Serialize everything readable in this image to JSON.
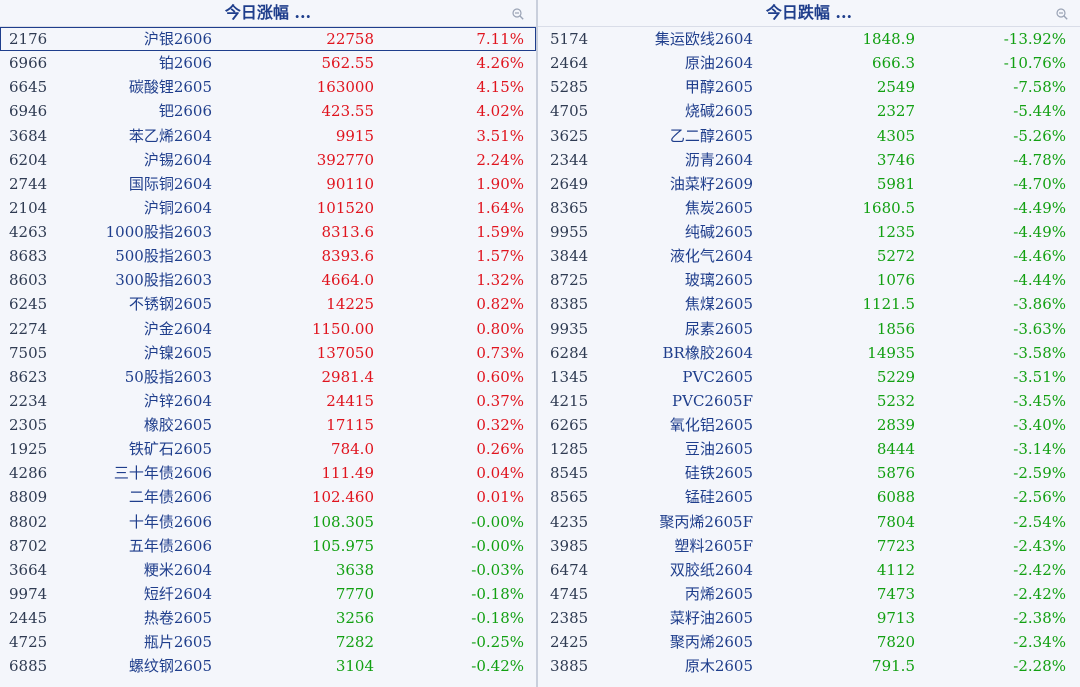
{
  "gainers": {
    "title": "今日涨幅 ...",
    "rows": [
      {
        "code": "2176",
        "name": "沪银2606",
        "price": "22758",
        "change": "7.11%",
        "dir": "up"
      },
      {
        "code": "6966",
        "name": "铂2606",
        "price": "562.55",
        "change": "4.26%",
        "dir": "up"
      },
      {
        "code": "6645",
        "name": "碳酸锂2605",
        "price": "163000",
        "change": "4.15%",
        "dir": "up"
      },
      {
        "code": "6946",
        "name": "钯2606",
        "price": "423.55",
        "change": "4.02%",
        "dir": "up"
      },
      {
        "code": "3684",
        "name": "苯乙烯2604",
        "price": "9915",
        "change": "3.51%",
        "dir": "up"
      },
      {
        "code": "6204",
        "name": "沪锡2604",
        "price": "392770",
        "change": "2.24%",
        "dir": "up"
      },
      {
        "code": "2744",
        "name": "国际铜2604",
        "price": "90110",
        "change": "1.90%",
        "dir": "up"
      },
      {
        "code": "2104",
        "name": "沪铜2604",
        "price": "101520",
        "change": "1.64%",
        "dir": "up"
      },
      {
        "code": "4263",
        "name": "1000股指2603",
        "price": "8313.6",
        "change": "1.59%",
        "dir": "up"
      },
      {
        "code": "8683",
        "name": "500股指2603",
        "price": "8393.6",
        "change": "1.57%",
        "dir": "up"
      },
      {
        "code": "8603",
        "name": "300股指2603",
        "price": "4664.0",
        "change": "1.32%",
        "dir": "up"
      },
      {
        "code": "6245",
        "name": "不锈钢2605",
        "price": "14225",
        "change": "0.82%",
        "dir": "up"
      },
      {
        "code": "2274",
        "name": "沪金2604",
        "price": "1150.00",
        "change": "0.80%",
        "dir": "up"
      },
      {
        "code": "7505",
        "name": "沪镍2605",
        "price": "137050",
        "change": "0.73%",
        "dir": "up"
      },
      {
        "code": "8623",
        "name": "50股指2603",
        "price": "2981.4",
        "change": "0.60%",
        "dir": "up"
      },
      {
        "code": "2234",
        "name": "沪锌2604",
        "price": "24415",
        "change": "0.37%",
        "dir": "up"
      },
      {
        "code": "2305",
        "name": "橡胶2605",
        "price": "17115",
        "change": "0.32%",
        "dir": "up"
      },
      {
        "code": "1925",
        "name": "铁矿石2605",
        "price": "784.0",
        "change": "0.26%",
        "dir": "up"
      },
      {
        "code": "4286",
        "name": "三十年债2606",
        "price": "111.49",
        "change": "0.04%",
        "dir": "up"
      },
      {
        "code": "8809",
        "name": "二年债2606",
        "price": "102.460",
        "change": "0.01%",
        "dir": "up"
      },
      {
        "code": "8802",
        "name": "十年债2606",
        "price": "108.305",
        "change": "-0.00%",
        "dir": "down"
      },
      {
        "code": "8702",
        "name": "五年债2606",
        "price": "105.975",
        "change": "-0.00%",
        "dir": "down"
      },
      {
        "code": "3664",
        "name": "粳米2604",
        "price": "3638",
        "change": "-0.03%",
        "dir": "down"
      },
      {
        "code": "9974",
        "name": "短纤2604",
        "price": "7770",
        "change": "-0.18%",
        "dir": "down"
      },
      {
        "code": "2445",
        "name": "热卷2605",
        "price": "3256",
        "change": "-0.18%",
        "dir": "down"
      },
      {
        "code": "4725",
        "name": "瓶片2605",
        "price": "7282",
        "change": "-0.25%",
        "dir": "down"
      },
      {
        "code": "6885",
        "name": "螺纹钢2605",
        "price": "3104",
        "change": "-0.42%",
        "dir": "down"
      }
    ]
  },
  "losers": {
    "title": "今日跌幅 ...",
    "rows": [
      {
        "code": "5174",
        "name": "集运欧线2604",
        "price": "1848.9",
        "change": "-13.92%",
        "dir": "down"
      },
      {
        "code": "2464",
        "name": "原油2604",
        "price": "666.3",
        "change": "-10.76%",
        "dir": "down"
      },
      {
        "code": "5285",
        "name": "甲醇2605",
        "price": "2549",
        "change": "-7.58%",
        "dir": "down"
      },
      {
        "code": "4705",
        "name": "烧碱2605",
        "price": "2327",
        "change": "-5.44%",
        "dir": "down"
      },
      {
        "code": "3625",
        "name": "乙二醇2605",
        "price": "4305",
        "change": "-5.26%",
        "dir": "down"
      },
      {
        "code": "2344",
        "name": "沥青2604",
        "price": "3746",
        "change": "-4.78%",
        "dir": "down"
      },
      {
        "code": "2649",
        "name": "油菜籽2609",
        "price": "5981",
        "change": "-4.70%",
        "dir": "down"
      },
      {
        "code": "8365",
        "name": "焦炭2605",
        "price": "1680.5",
        "change": "-4.49%",
        "dir": "down"
      },
      {
        "code": "9955",
        "name": "纯碱2605",
        "price": "1235",
        "change": "-4.49%",
        "dir": "down"
      },
      {
        "code": "3844",
        "name": "液化气2604",
        "price": "5272",
        "change": "-4.46%",
        "dir": "down"
      },
      {
        "code": "8725",
        "name": "玻璃2605",
        "price": "1076",
        "change": "-4.44%",
        "dir": "down"
      },
      {
        "code": "8385",
        "name": "焦煤2605",
        "price": "1121.5",
        "change": "-3.86%",
        "dir": "down"
      },
      {
        "code": "9935",
        "name": "尿素2605",
        "price": "1856",
        "change": "-3.63%",
        "dir": "down"
      },
      {
        "code": "6284",
        "name": "BR橡胶2604",
        "price": "14935",
        "change": "-3.58%",
        "dir": "down"
      },
      {
        "code": "1345",
        "name": "PVC2605",
        "price": "5229",
        "change": "-3.51%",
        "dir": "down"
      },
      {
        "code": "4215",
        "name": "PVC2605F",
        "price": "5232",
        "change": "-3.45%",
        "dir": "down"
      },
      {
        "code": "6265",
        "name": "氧化铝2605",
        "price": "2839",
        "change": "-3.40%",
        "dir": "down"
      },
      {
        "code": "1285",
        "name": "豆油2605",
        "price": "8444",
        "change": "-3.14%",
        "dir": "down"
      },
      {
        "code": "8545",
        "name": "硅铁2605",
        "price": "5876",
        "change": "-2.59%",
        "dir": "down"
      },
      {
        "code": "8565",
        "name": "锰硅2605",
        "price": "6088",
        "change": "-2.56%",
        "dir": "down"
      },
      {
        "code": "4235",
        "name": "聚丙烯2605F",
        "price": "7804",
        "change": "-2.54%",
        "dir": "down"
      },
      {
        "code": "3985",
        "name": "塑料2605F",
        "price": "7723",
        "change": "-2.43%",
        "dir": "down"
      },
      {
        "code": "6474",
        "name": "双胶纸2604",
        "price": "4112",
        "change": "-2.42%",
        "dir": "down"
      },
      {
        "code": "4745",
        "name": "丙烯2605",
        "price": "7473",
        "change": "-2.42%",
        "dir": "down"
      },
      {
        "code": "2385",
        "name": "菜籽油2605",
        "price": "9713",
        "change": "-2.38%",
        "dir": "down"
      },
      {
        "code": "2425",
        "name": "聚丙烯2605",
        "price": "7820",
        "change": "-2.34%",
        "dir": "down"
      },
      {
        "code": "3885",
        "name": "原木2605",
        "price": "791.5",
        "change": "-2.28%",
        "dir": "down"
      }
    ]
  },
  "selected_row": 0,
  "colors": {
    "up": "#e0141e",
    "down": "#12a012",
    "name": "#1f3e8c"
  },
  "icons": {
    "header_action": "zoom-out-icon"
  }
}
